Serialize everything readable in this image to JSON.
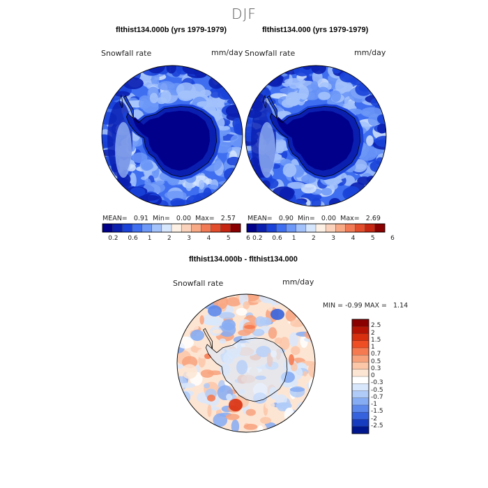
{
  "suptitle": "DJF",
  "panels": [
    {
      "title": "flthist134.000b (yrs 1979-1979)",
      "variable": "Snowfall rate",
      "units": "mm/day",
      "mean_label": "MEAN=",
      "mean": "0.91",
      "min_label": "Min=",
      "min": "0.00",
      "max_label": "Max=",
      "max": "2.57"
    },
    {
      "title": "flthist134.000 (yrs 1979-1979)",
      "variable": "Snowfall rate",
      "units": "mm/day",
      "mean_label": "MEAN=",
      "mean": "0.90",
      "min_label": "Min=",
      "min": "0.00",
      "max_label": "Max=",
      "max": "2.69"
    },
    {
      "title": "flthist134.000b - flthist134.000",
      "variable": "Snowfall rate",
      "units": "mm/day",
      "min_label": "MIN =",
      "min": "-0.99",
      "max_label": "MAX =",
      "max": "1.14"
    }
  ],
  "chart_data": [
    {
      "type": "heatmap",
      "projection": "south-polar-stereographic",
      "title": "flthist134.000b (yrs 1979-1979)",
      "levels": [
        "0.2",
        "0.6",
        "1",
        "2",
        "3",
        "4",
        "5",
        "6"
      ],
      "colorbar_colors": [
        "#00008b",
        "#0a1fb0",
        "#1a42d8",
        "#3f6ff0",
        "#6d98f7",
        "#a3c2fb",
        "#d6e6fd",
        "#fdf1e6",
        "#fbd3bd",
        "#f8a986",
        "#f27b56",
        "#e44d2b",
        "#c62612",
        "#8a0000"
      ],
      "stats": {
        "mean": 0.91,
        "min": 0.0,
        "max": 2.57
      }
    },
    {
      "type": "heatmap",
      "projection": "south-polar-stereographic",
      "title": "flthist134.000 (yrs 1979-1979)",
      "levels": [
        "0.2",
        "0.6",
        "1",
        "2",
        "3",
        "4",
        "5",
        "6"
      ],
      "colorbar_colors": [
        "#00008b",
        "#0a1fb0",
        "#1a42d8",
        "#3f6ff0",
        "#6d98f7",
        "#a3c2fb",
        "#d6e6fd",
        "#fdf1e6",
        "#fbd3bd",
        "#f8a986",
        "#f27b56",
        "#e44d2b",
        "#c62612",
        "#8a0000"
      ],
      "stats": {
        "mean": 0.9,
        "min": 0.0,
        "max": 2.69
      }
    },
    {
      "type": "heatmap",
      "projection": "south-polar-stereographic",
      "title": "flthist134.000b - flthist134.000",
      "levels": [
        "2.5",
        "2",
        "1.5",
        "1",
        "0.7",
        "0.5",
        "0.3",
        "0",
        "-0.3",
        "-0.5",
        "-0.7",
        "-1",
        "-1.5",
        "-2",
        "-2.5"
      ],
      "colorbar_colors": [
        "#8a0000",
        "#b51405",
        "#d8300f",
        "#ef4e24",
        "#f67a50",
        "#f8a27c",
        "#fbc7a8",
        "#fde5d3",
        "#ffffff",
        "#d9e7fc",
        "#b0cbf8",
        "#86acf3",
        "#5c88ec",
        "#3663dd",
        "#173cc0",
        "#00168f"
      ],
      "stats": {
        "min": -0.99,
        "max": 1.14
      }
    }
  ]
}
